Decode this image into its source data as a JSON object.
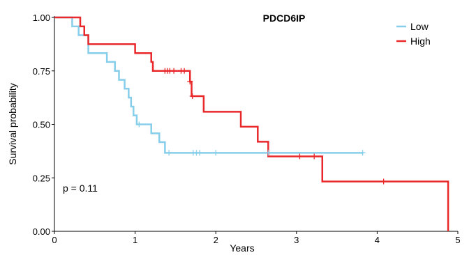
{
  "chart_data": {
    "type": "line",
    "subtype": "kaplan-meier",
    "title": "PDCD6IP",
    "xlabel": "Years",
    "ylabel": "Survival probability",
    "xlim": [
      0,
      5
    ],
    "ylim": [
      0,
      1
    ],
    "x_ticks": [
      "0",
      "1",
      "2",
      "3",
      "4",
      "5"
    ],
    "y_ticks": [
      "0.00",
      "0.25",
      "0.50",
      "0.75",
      "1.00"
    ],
    "grid": false,
    "legend_position": "top-right",
    "annotation": "p = 0.11",
    "series": [
      {
        "name": "Low",
        "color": "#87CEEB",
        "steps": [
          [
            0,
            1.0
          ],
          [
            0.22,
            0.958
          ],
          [
            0.3,
            0.917
          ],
          [
            0.42,
            0.833
          ],
          [
            0.65,
            0.792
          ],
          [
            0.75,
            0.75
          ],
          [
            0.8,
            0.708
          ],
          [
            0.87,
            0.667
          ],
          [
            0.92,
            0.625
          ],
          [
            0.95,
            0.583
          ],
          [
            0.98,
            0.542
          ],
          [
            1.02,
            0.5
          ],
          [
            1.2,
            0.458
          ],
          [
            1.3,
            0.417
          ],
          [
            1.37,
            0.367
          ],
          [
            3.83,
            0.367
          ]
        ],
        "censored": [
          [
            1.05,
            0.5
          ],
          [
            1.42,
            0.367
          ],
          [
            1.72,
            0.367
          ],
          [
            1.76,
            0.367
          ],
          [
            1.8,
            0.367
          ],
          [
            2.0,
            0.367
          ],
          [
            2.65,
            0.367
          ],
          [
            3.82,
            0.367
          ]
        ]
      },
      {
        "name": "High",
        "color": "#E8282B",
        "steps": [
          [
            0,
            1.0
          ],
          [
            0.32,
            0.958
          ],
          [
            0.37,
            0.917
          ],
          [
            0.42,
            0.875
          ],
          [
            1.0,
            0.833
          ],
          [
            1.2,
            0.792
          ],
          [
            1.22,
            0.75
          ],
          [
            1.68,
            0.7
          ],
          [
            1.7,
            0.632
          ],
          [
            1.85,
            0.559
          ],
          [
            2.31,
            0.489
          ],
          [
            2.52,
            0.419
          ],
          [
            2.65,
            0.35
          ],
          [
            3.32,
            0.233
          ],
          [
            4.88,
            0.233
          ],
          [
            4.88,
            0.0
          ]
        ],
        "censored": [
          [
            1.37,
            0.75
          ],
          [
            1.4,
            0.75
          ],
          [
            1.43,
            0.75
          ],
          [
            1.48,
            0.75
          ],
          [
            1.57,
            0.75
          ],
          [
            1.61,
            0.75
          ],
          [
            1.68,
            0.7
          ],
          [
            1.71,
            0.632
          ],
          [
            3.04,
            0.35
          ],
          [
            3.22,
            0.35
          ],
          [
            4.08,
            0.233
          ]
        ]
      }
    ]
  }
}
